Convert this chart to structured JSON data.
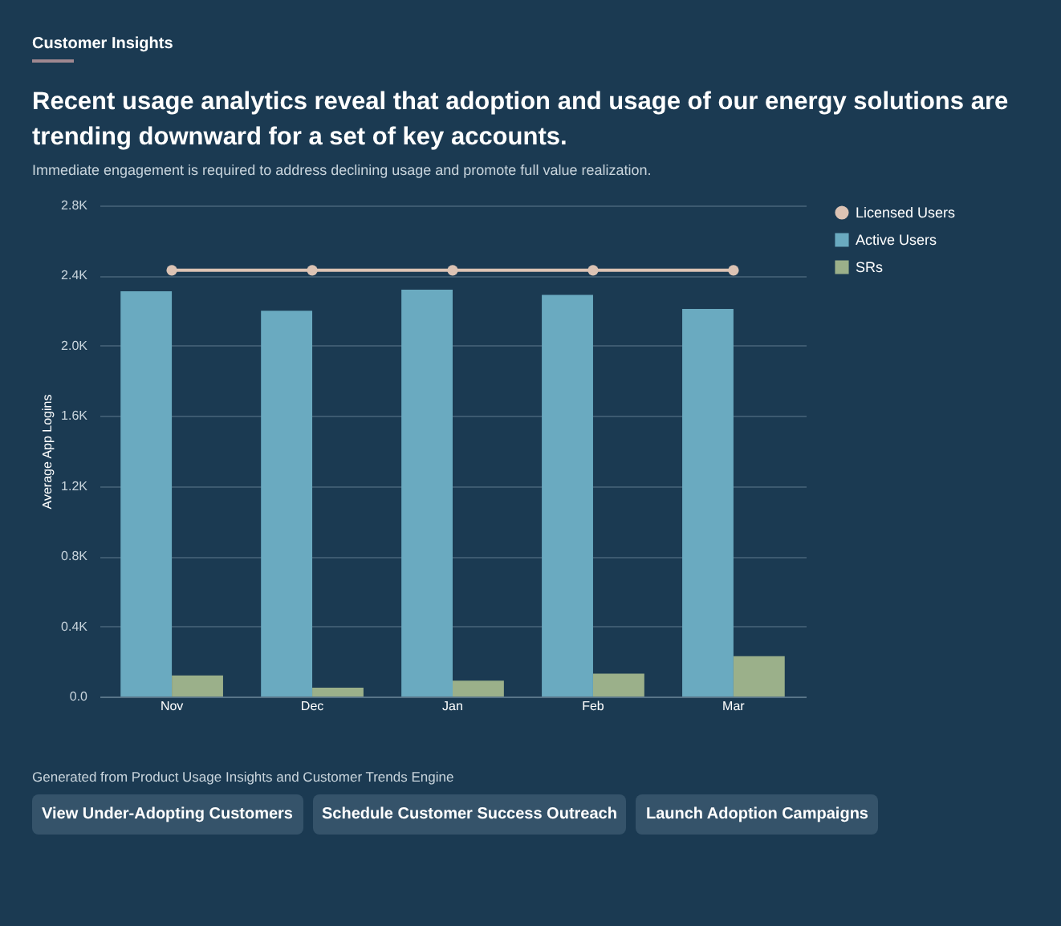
{
  "chart_data": {
    "type": "bar",
    "title": "Recent usage analytics reveal that adoption and usage of our energy solutions are trending downward for a set of key accounts.",
    "subtitle": "Immediate engagement is required to address declining usage and promote full value realization.",
    "ylabel": "Average App Logins",
    "categories": [
      "Nov",
      "Dec",
      "Jan",
      "Feb",
      "Mar"
    ],
    "series": [
      {
        "name": "Licensed Users",
        "type": "line",
        "color": "#dcc3b4",
        "values": [
          2430,
          2430,
          2430,
          2430,
          2430
        ]
      },
      {
        "name": "Active Users",
        "color": "#6aaac0",
        "values": [
          2310,
          2200,
          2320,
          2290,
          2210
        ]
      },
      {
        "name": "SRs",
        "color": "#9bb08a",
        "values": [
          120,
          50,
          90,
          130,
          230
        ]
      }
    ],
    "ylim": [
      0,
      2800
    ],
    "yticks": [
      {
        "value": 0,
        "label": "0.0"
      },
      {
        "value": 400,
        "label": "0.4K"
      },
      {
        "value": 800,
        "label": "0.8K"
      },
      {
        "value": 1200,
        "label": "1.2K"
      },
      {
        "value": 1600,
        "label": "1.6K"
      },
      {
        "value": 2000,
        "label": "2.0K"
      },
      {
        "value": 2400,
        "label": "2.4K"
      },
      {
        "value": 2800,
        "label": "2.8K"
      }
    ],
    "grid": "y",
    "legend": "right",
    "marker": "circle",
    "line_style": "solid",
    "annotations": [
      "Customer Insights",
      "Generated from Product Usage Insights and Customer Trends Engine",
      "View Under-Adopting Customers",
      "Schedule Customer Success Outreach",
      "Launch Adoption Campaigns"
    ]
  }
}
